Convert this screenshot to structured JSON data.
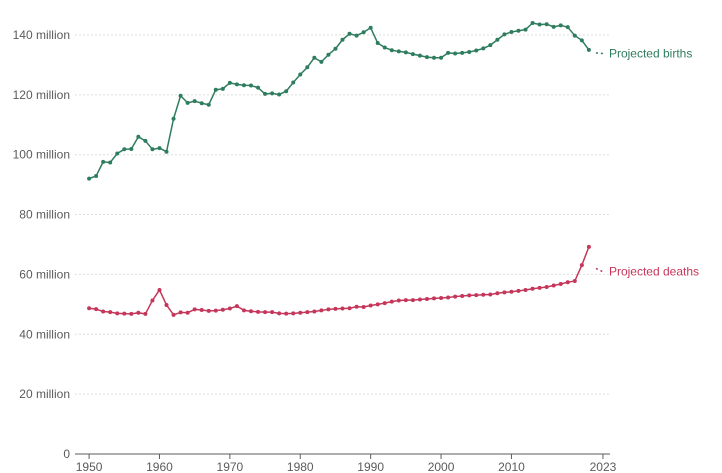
{
  "chart_data": {
    "type": "line",
    "title": "",
    "xlabel": "",
    "ylabel": "",
    "xlim": [
      1948,
      2024
    ],
    "ylim": [
      0,
      145
    ],
    "y_ticks": [
      0,
      20,
      40,
      60,
      80,
      100,
      120,
      140
    ],
    "y_tick_labels": [
      "0",
      "20 million",
      "40 million",
      "60 million",
      "80 million",
      "100 million",
      "120 million",
      "140 million"
    ],
    "x_ticks": [
      1950,
      1960,
      1970,
      1980,
      1990,
      2000,
      2010,
      2023
    ],
    "x_tick_labels": [
      "1950",
      "1960",
      "1970",
      "1980",
      "1990",
      "2000",
      "2010",
      "2023"
    ],
    "grid": true,
    "legend": "inline-right",
    "x": [
      1950,
      1951,
      1952,
      1953,
      1954,
      1955,
      1956,
      1957,
      1958,
      1959,
      1960,
      1961,
      1962,
      1963,
      1964,
      1965,
      1966,
      1967,
      1968,
      1969,
      1970,
      1971,
      1972,
      1973,
      1974,
      1975,
      1976,
      1977,
      1978,
      1979,
      1980,
      1981,
      1982,
      1983,
      1984,
      1985,
      1986,
      1987,
      1988,
      1989,
      1990,
      1991,
      1992,
      1993,
      1994,
      1995,
      1996,
      1997,
      1998,
      1999,
      2000,
      2001,
      2002,
      2003,
      2004,
      2005,
      2006,
      2007,
      2008,
      2009,
      2010,
      2011,
      2012,
      2013,
      2014,
      2015,
      2016,
      2017,
      2018,
      2019,
      2020,
      2021,
      2022,
      2023
    ],
    "series": [
      {
        "name": "Projected births",
        "color": "#2e7d5e",
        "values": [
          92.0,
          92.9,
          97.6,
          97.4,
          100.4,
          101.8,
          101.9,
          106.0,
          104.6,
          101.8,
          102.2,
          101.0,
          112.0,
          119.7,
          117.3,
          117.9,
          117.2,
          116.7,
          121.7,
          122.0,
          124.0,
          123.5,
          123.2,
          123.1,
          122.4,
          120.3,
          120.5,
          120.1,
          121.2,
          124.1,
          126.8,
          129.2,
          132.4,
          131.0,
          133.4,
          135.4,
          138.4,
          140.4,
          139.8,
          140.9,
          142.4,
          137.3,
          135.8,
          134.9,
          134.5,
          134.2,
          133.6,
          133.1,
          132.6,
          132.4,
          132.4,
          134.0,
          133.8,
          134.0,
          134.3,
          134.8,
          135.5,
          136.6,
          138.4,
          140.2,
          141.0,
          141.4,
          141.8,
          144.0,
          143.5,
          143.6,
          142.7,
          143.2,
          142.6,
          139.8,
          138.2,
          135.0,
          134.0,
          133.8
        ]
      },
      {
        "name": "Projected deaths",
        "color": "#c4365a",
        "values": [
          48.7,
          48.4,
          47.6,
          47.4,
          47.0,
          46.9,
          46.8,
          47.2,
          46.8,
          51.3,
          54.8,
          49.8,
          46.5,
          47.3,
          47.2,
          48.3,
          48.1,
          47.8,
          47.9,
          48.2,
          48.6,
          49.4,
          48.0,
          47.7,
          47.5,
          47.4,
          47.4,
          47.0,
          46.9,
          47.0,
          47.2,
          47.4,
          47.6,
          48.0,
          48.3,
          48.5,
          48.6,
          48.7,
          49.2,
          49.1,
          49.6,
          50.0,
          50.4,
          50.9,
          51.3,
          51.4,
          51.4,
          51.6,
          51.8,
          52.0,
          52.1,
          52.3,
          52.6,
          52.8,
          53.0,
          53.1,
          53.2,
          53.3,
          53.7,
          54.0,
          54.2,
          54.5,
          54.8,
          55.2,
          55.5,
          55.8,
          56.3,
          56.8,
          57.4,
          57.8,
          63.1,
          69.2,
          62.0,
          60.9
        ]
      }
    ]
  }
}
